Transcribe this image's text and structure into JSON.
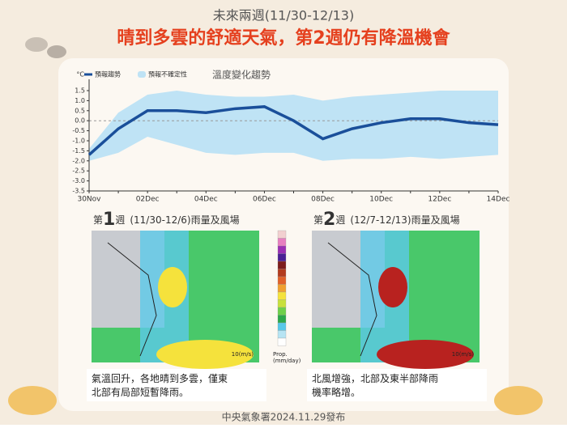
{
  "header": {
    "subtitle": "未來兩週(11/30-12/13)",
    "title": "晴到多雲的舒適天氣，第2週仍有降溫機會"
  },
  "chart_data": {
    "type": "line",
    "title": "溫度變化趨勢",
    "unit": "°C",
    "categories": [
      "30Nov",
      null,
      "02Dec",
      null,
      "04Dec",
      null,
      "06Dec",
      null,
      "08Dec",
      null,
      "10Dec",
      null,
      "12Dec",
      null,
      "14Dec"
    ],
    "series": [
      {
        "name": "預報趨勢",
        "color": "#1a4f9a",
        "values": [
          -1.7,
          -0.4,
          0.5,
          0.5,
          0.4,
          0.6,
          0.7,
          0.0,
          -0.9,
          -0.4,
          -0.1,
          0.1,
          0.1,
          -0.1,
          -0.2
        ]
      }
    ],
    "band": {
      "name": "預報不確定性",
      "color": "#bfe3f5",
      "lower": [
        -2.0,
        -1.6,
        -0.8,
        -1.2,
        -1.6,
        -1.7,
        -1.6,
        -1.6,
        -2.0,
        -1.9,
        -1.9,
        -1.8,
        -1.9,
        -1.8,
        -1.7
      ],
      "upper": [
        -1.4,
        0.4,
        1.3,
        1.5,
        1.3,
        1.2,
        1.2,
        1.3,
        1.0,
        1.2,
        1.3,
        1.4,
        1.5,
        1.5,
        1.5
      ]
    },
    "ylim": [
      -3.5,
      1.5
    ],
    "yticks": [
      1.5,
      {
        "value": 1,
        "label": "1.0"
      },
      0.5,
      {
        "value": 0,
        "label": "0.0"
      },
      -0.5,
      {
        "value": -1,
        "label": "-1.0"
      },
      -1.5,
      {
        "value": -2,
        "label": "-2.0"
      },
      -2.5,
      {
        "value": -3,
        "label": "-3.0"
      },
      -3.5
    ]
  },
  "panels": [
    {
      "week_prefix": "第",
      "week_number": "1",
      "week_suffix": "週",
      "range": "(11/30-12/6)雨量及風場",
      "wind_scale": "10(m/s)",
      "caption": "氣溫回升，各地晴到多雲，僅東北部有局部短暫降雨。"
    },
    {
      "week_prefix": "第",
      "week_number": "2",
      "week_suffix": "週",
      "range": "(12/7-12/13)雨量及風場",
      "wind_scale": "10(m/s)",
      "caption": "北風增強，北部及東半部降雨機率略增。"
    }
  ],
  "colorbar": {
    "label": "Prop.",
    "unit": "(mm/day)"
  },
  "footer": "中央氣象署2024.11.29發布"
}
